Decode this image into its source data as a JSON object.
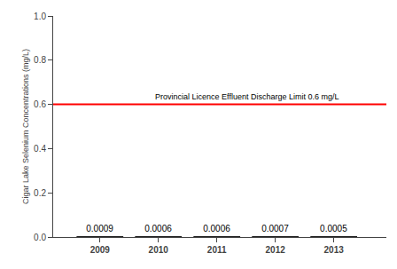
{
  "chart_data": {
    "type": "bar",
    "x": [
      2009,
      2010,
      2011,
      2012,
      2013
    ],
    "values": [
      0.0009,
      0.0006,
      0.0006,
      0.0007,
      0.0005
    ],
    "color": "#1a1a1a",
    "data_labels": true,
    "ylabel": "Cigar Lake Selenium Concentrations (mg/L)",
    "xlim": [
      2008.2,
      2013.9
    ],
    "xticks": [
      2009,
      2010,
      2011,
      2012,
      2013
    ],
    "ylim": [
      0.0,
      1.0
    ],
    "yticks": [
      {
        "value": 0.0,
        "label": "0.0"
      },
      0.2,
      0.4,
      0.6,
      0.8,
      {
        "value": 1.0,
        "label": "1.0"
      }
    ],
    "limit": {
      "value": 0.6,
      "label": "Provincial Licence Effluent Discharge Limit 0.6 mg/L",
      "color": "#ff0000"
    },
    "grid": false
  }
}
